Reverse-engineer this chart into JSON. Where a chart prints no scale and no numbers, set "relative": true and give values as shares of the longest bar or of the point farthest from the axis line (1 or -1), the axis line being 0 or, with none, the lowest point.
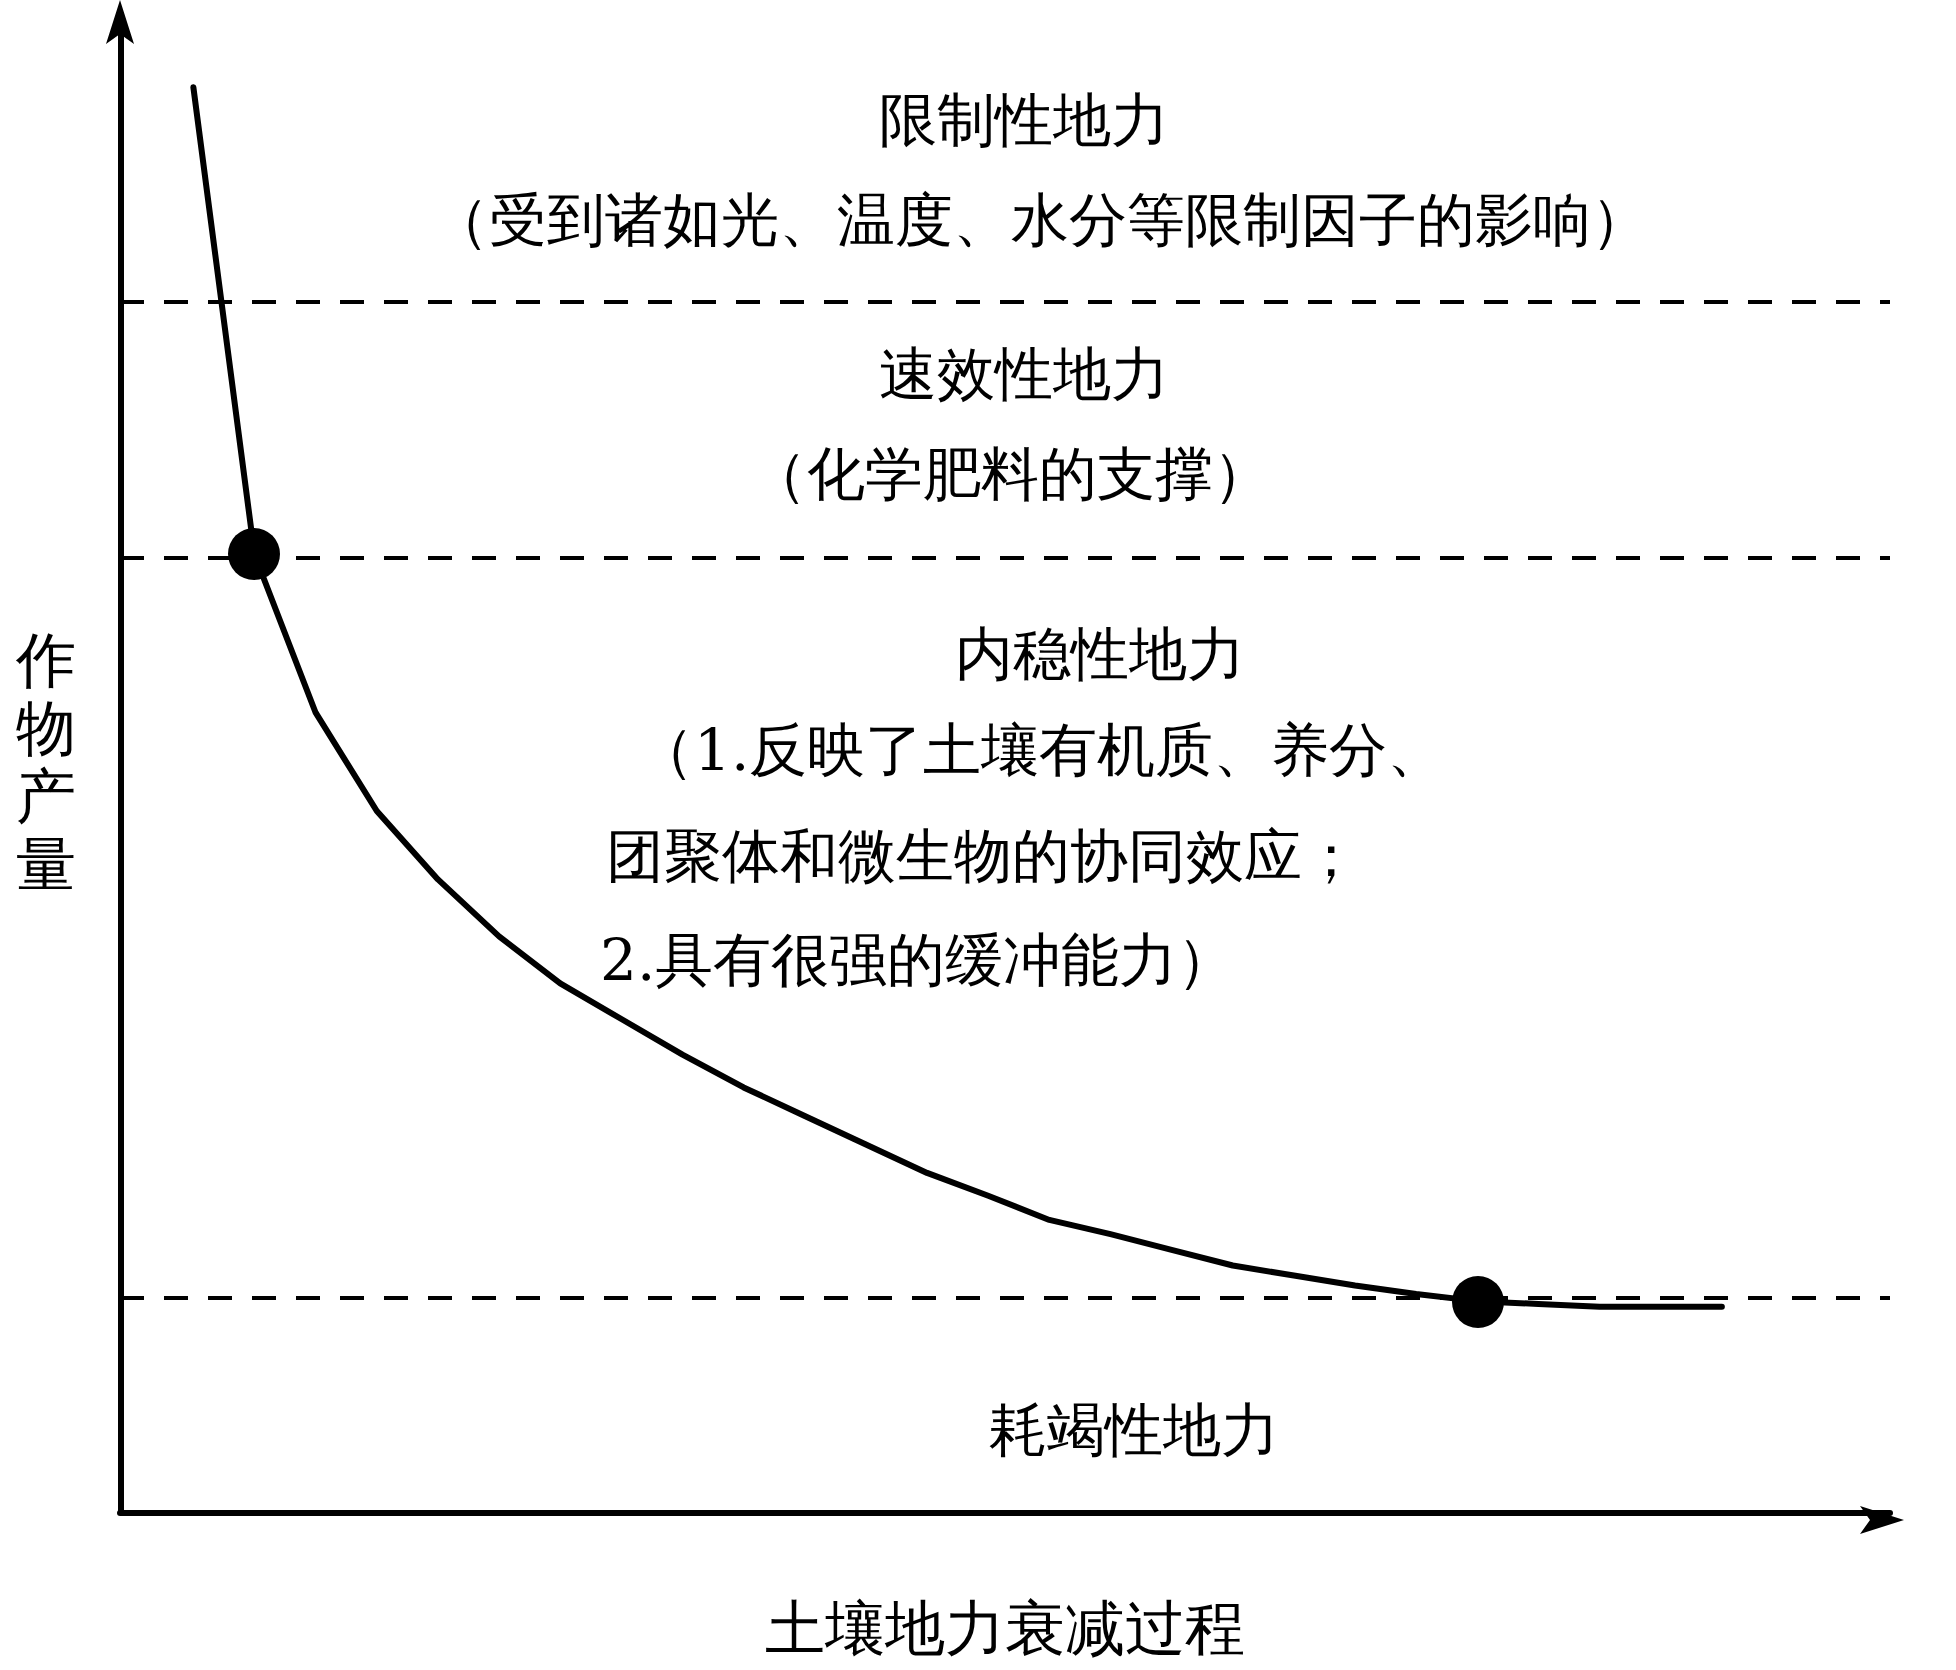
{
  "chart_data": {
    "type": "line",
    "relative": true,
    "xlabel": "土壤地力衰减过程",
    "ylabel": "作物产量",
    "categories": [
      null,
      null,
      null,
      null,
      null,
      null,
      null,
      null,
      null,
      null,
      null,
      null,
      null,
      null,
      null,
      null,
      null,
      null,
      null,
      null,
      null,
      null,
      null,
      null,
      null,
      null
    ],
    "series": [
      {
        "color": "#000000",
        "marker": "none",
        "line_style": "solid",
        "values": [
          1,
          0.672,
          0.561,
          0.492,
          0.444,
          0.404,
          0.371,
          0.346,
          0.321,
          0.298,
          0.278,
          0.258,
          0.238,
          0.222,
          0.205,
          0.195,
          0.184,
          0.173,
          0.166,
          0.159,
          0.153,
          0.148,
          0.146,
          0.144,
          0.144,
          0.144
        ]
      }
    ],
    "ref_lines": [
      {
        "axis": "y",
        "value": 0.851,
        "color": "#000000",
        "line_style": "dashed"
      },
      {
        "axis": "y",
        "value": 0.672,
        "color": "#000000",
        "line_style": "dashed"
      },
      {
        "axis": "y",
        "value": 0.148,
        "color": "#000000",
        "line_style": "dashed"
      }
    ],
    "annotations": [
      "限制性地力",
      "（受到诸如光、温度、水分等限制因子的影响）",
      "速效性地力",
      "（化学肥料的支撑）",
      "内稳性地力",
      "（1.反映了土壤有机质、养分、",
      "团聚体和微生物的协同效应；",
      "2.具有很强的缓冲能力）",
      "耗竭性地力"
    ],
    "grid": false
  }
}
